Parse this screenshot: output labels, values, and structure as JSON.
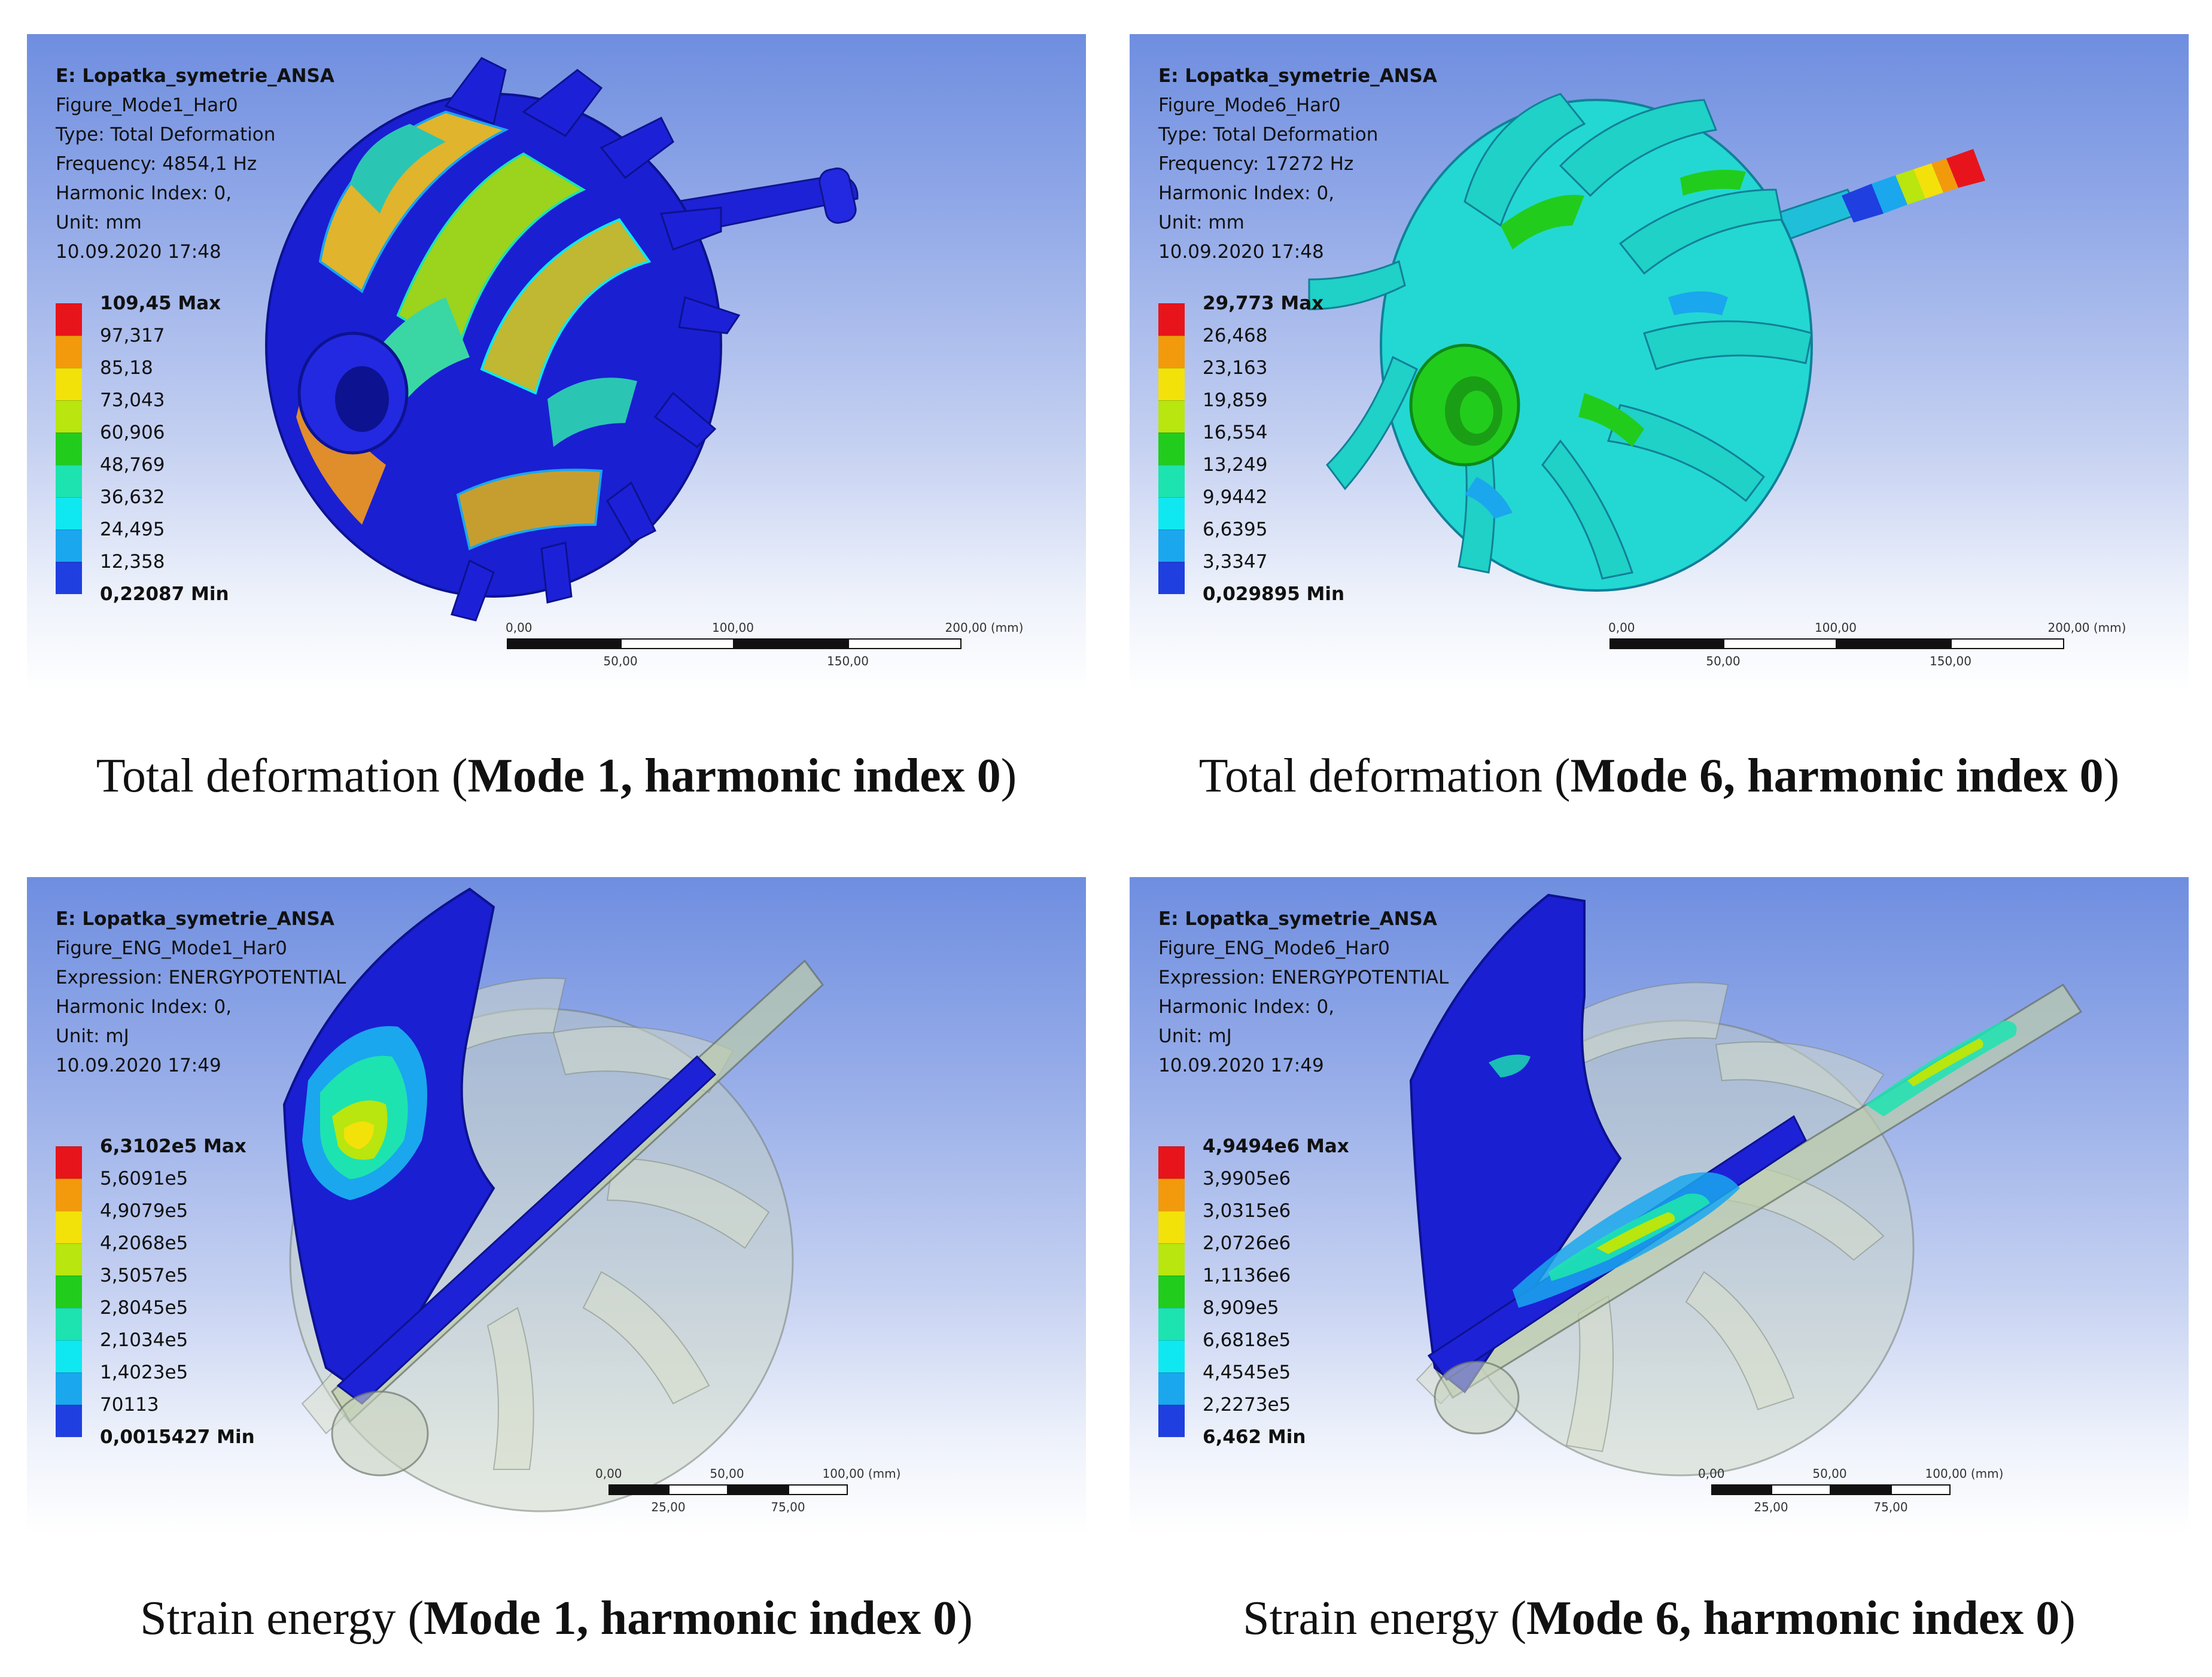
{
  "panels": [
    {
      "info": [
        "E: Lopatka_symetrie_ANSA",
        "Figure_Mode1_Har0",
        "Type: Total Deformation",
        "Frequency: 4854,1 Hz",
        "Harmonic Index: 0,",
        "Unit: mm",
        "10.09.2020 17:48"
      ],
      "legend": [
        "109,45 Max",
        "97,317",
        "85,18",
        "73,043",
        "60,906",
        "48,769",
        "36,632",
        "24,495",
        "12,358",
        "0,22087 Min"
      ],
      "scale": {
        "top": [
          "0,00",
          "100,00",
          "200,00 (mm)"
        ],
        "bottom": [
          "50,00",
          "150,00"
        ]
      },
      "caption": {
        "prefix": "Total deformation (",
        "bold": "Mode 1, harmonic index 0",
        "suffix": ")"
      }
    },
    {
      "info": [
        "E: Lopatka_symetrie_ANSA",
        "Figure_Mode6_Har0",
        "Type: Total Deformation",
        "Frequency: 17272 Hz",
        "Harmonic Index: 0,",
        "Unit: mm",
        "10.09.2020 17:48"
      ],
      "legend": [
        "29,773 Max",
        "26,468",
        "23,163",
        "19,859",
        "16,554",
        "13,249",
        "9,9442",
        "6,6395",
        "3,3347",
        "0,029895 Min"
      ],
      "scale": {
        "top": [
          "0,00",
          "100,00",
          "200,00 (mm)"
        ],
        "bottom": [
          "50,00",
          "150,00"
        ]
      },
      "caption": {
        "prefix": "Total deformation (",
        "bold": "Mode 6, harmonic index 0",
        "suffix": ")"
      }
    },
    {
      "info": [
        "E: Lopatka_symetrie_ANSA",
        "Figure_ENG_Mode1_Har0",
        "Expression: ENERGYPOTENTIAL",
        "Harmonic Index: 0,",
        "Unit: mJ",
        "10.09.2020 17:49"
      ],
      "legend": [
        "6,3102e5 Max",
        "5,6091e5",
        "4,9079e5",
        "4,2068e5",
        "3,5057e5",
        "2,8045e5",
        "2,1034e5",
        "1,4023e5",
        "70113",
        "0,0015427 Min"
      ],
      "scale": {
        "top": [
          "0,00",
          "50,00",
          "100,00 (mm)"
        ],
        "bottom": [
          "25,00",
          "75,00"
        ]
      },
      "caption": {
        "prefix": "Strain energy (",
        "bold": "Mode 1, harmonic index 0",
        "suffix": ")"
      }
    },
    {
      "info": [
        "E: Lopatka_symetrie_ANSA",
        "Figure_ENG_Mode6_Har0",
        "Expression: ENERGYPOTENTIAL",
        "Harmonic Index: 0,",
        "Unit: mJ",
        "10.09.2020 17:49"
      ],
      "legend": [
        "4,9494e6 Max",
        "3,9905e6",
        "3,0315e6",
        "2,0726e6",
        "1,1136e6",
        "8,909e5",
        "6,6818e5",
        "4,4545e5",
        "2,2273e5",
        "6,462 Min"
      ],
      "scale": {
        "top": [
          "0,00",
          "50,00",
          "100,00 (mm)"
        ],
        "bottom": [
          "25,00",
          "75,00"
        ]
      },
      "caption": {
        "prefix": "Strain energy (",
        "bold": "Mode 6, harmonic index 0",
        "suffix": ")"
      }
    }
  ],
  "legend_colors": [
    "#e8141b",
    "#f29a0b",
    "#f3e10a",
    "#b8e60e",
    "#22cc1d",
    "#1de3b0",
    "#0fe8f0",
    "#1aa7ee",
    "#1f3fe0"
  ]
}
